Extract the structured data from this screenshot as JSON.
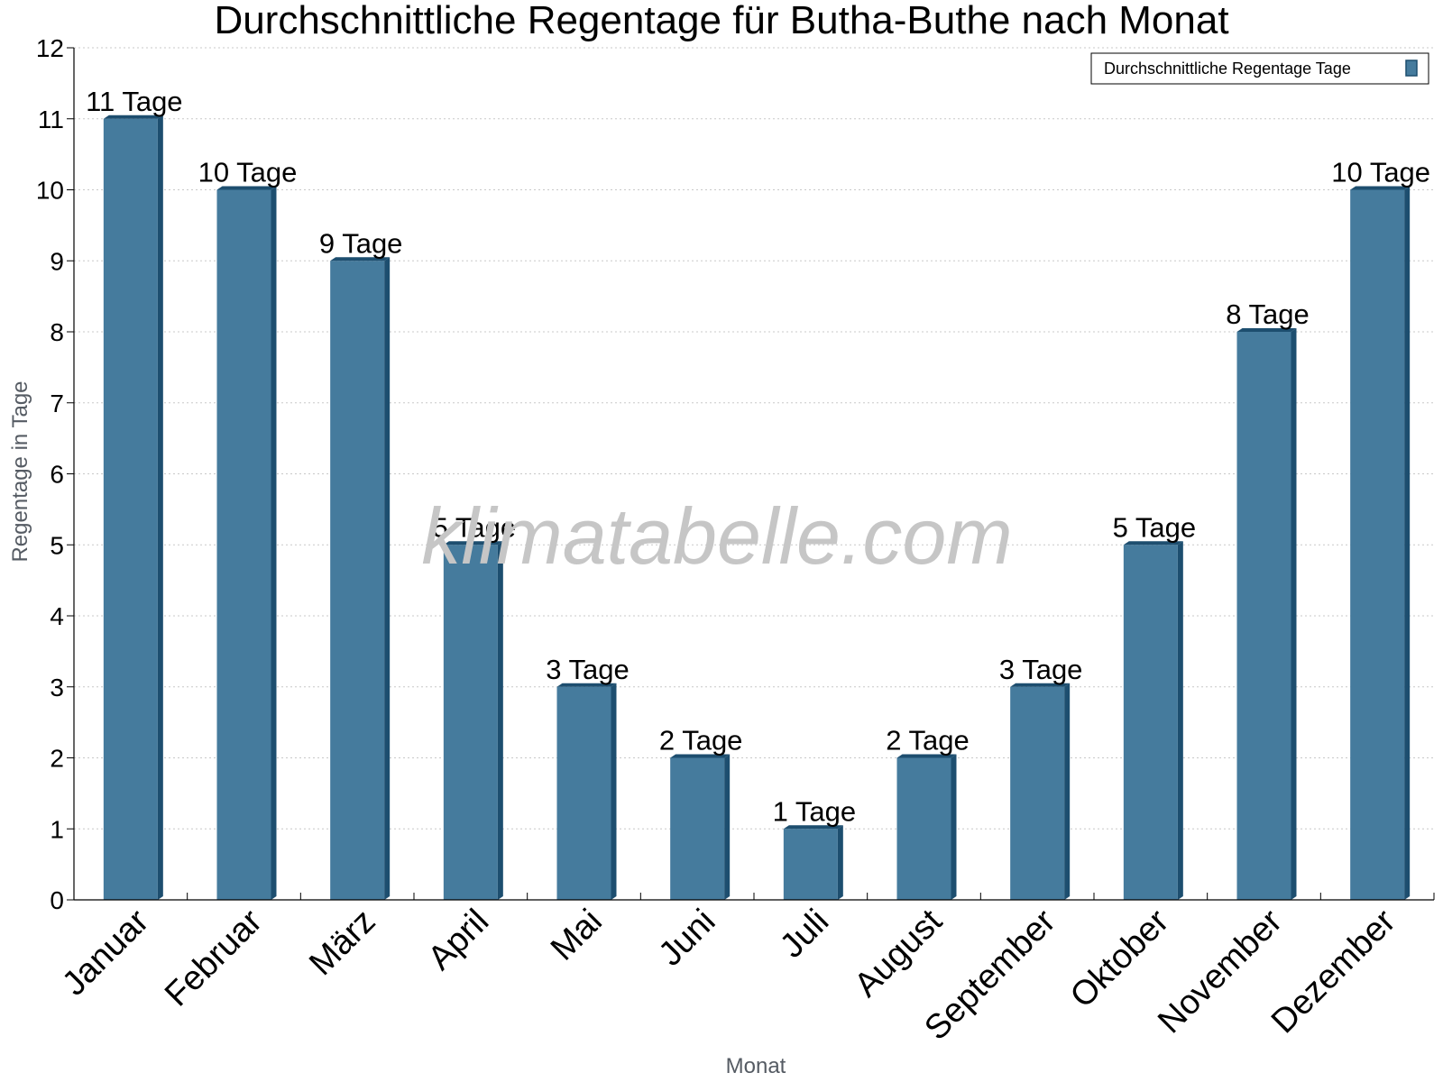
{
  "watermark": "klimatabelle.com",
  "chart_data": {
    "type": "bar",
    "title": "Durchschnittliche Regentage für Butha-Buthe nach Monat",
    "xlabel": "Monat",
    "ylabel": "Regentage in Tage",
    "categories": [
      "Januar",
      "Februar",
      "März",
      "April",
      "Mai",
      "Juni",
      "Juli",
      "August",
      "September",
      "Oktober",
      "November",
      "Dezember"
    ],
    "series": [
      {
        "name": "Durchschnittliche Regentage Tage",
        "values": [
          11,
          10,
          9,
          5,
          3,
          2,
          1,
          2,
          3,
          5,
          8,
          10
        ],
        "labels": [
          "11 Tage",
          "10 Tage",
          "9 Tage",
          "5 Tage",
          "3 Tage",
          "2 Tage",
          "1 Tage",
          "2 Tage",
          "3 Tage",
          "5 Tage",
          "8 Tage",
          "10 Tage"
        ]
      }
    ],
    "ylim": [
      0,
      12
    ],
    "yticks": [
      "0",
      "1",
      "2",
      "3",
      "4",
      "5",
      "6",
      "7",
      "8",
      "9",
      "10",
      "11",
      "12"
    ],
    "grid": true,
    "legend_position": "top-right",
    "colors": {
      "bar": "#457b9d",
      "bar_side": "#1d4e6f",
      "grid": "#c8c8c8"
    }
  }
}
